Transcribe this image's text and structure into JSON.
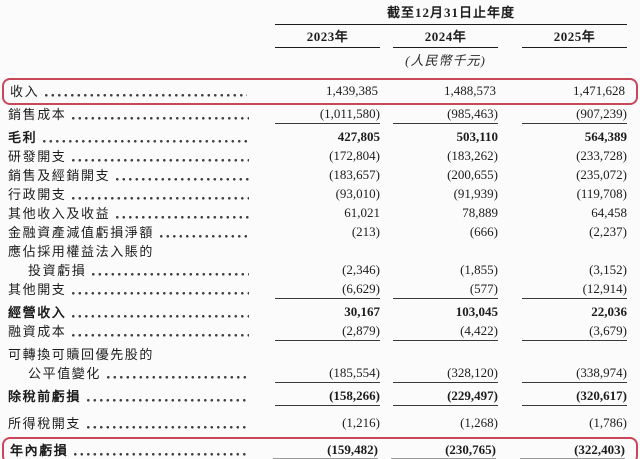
{
  "document": {
    "kind": "income-statement-table",
    "language": "zh-Hant"
  },
  "colors": {
    "highlight_border": "#c8485a",
    "text": "#1c1c1c",
    "rule": "#3a3a3a",
    "total_rule": "#9a9a9a",
    "background": "#fbfbfc"
  },
  "table": {
    "period_header": "截至12月31日止年度",
    "col_headers": [
      "2023年",
      "2024年",
      "2025年"
    ],
    "currency_note": "(人民幣千元)",
    "rows": [
      {
        "key": "revenue",
        "label": "收入",
        "values": [
          "1,439,385",
          "1,488,573",
          "1,471,628"
        ],
        "highlight": true
      },
      {
        "key": "cost-of-sales",
        "label": "銷售成本",
        "values": [
          "(1,011,580)",
          "(985,463)",
          "(907,239)"
        ],
        "rule": true
      },
      {
        "key": "gross-profit",
        "label": "毛利",
        "values": [
          "427,805",
          "503,110",
          "564,389"
        ],
        "bold": true,
        "gap": 1
      },
      {
        "key": "rd-expenses",
        "label": "研發開支",
        "values": [
          "(172,804)",
          "(183,262)",
          "(233,728)"
        ]
      },
      {
        "key": "selling-distribution-expenses",
        "label": "銷售及經銷開支",
        "values": [
          "(183,657)",
          "(200,655)",
          "(235,072)"
        ]
      },
      {
        "key": "admin-expenses",
        "label": "行政開支",
        "values": [
          "(93,010)",
          "(91,939)",
          "(119,708)"
        ]
      },
      {
        "key": "other-income-gains",
        "label": "其他收入及收益",
        "values": [
          "61,021",
          "78,889",
          "64,458"
        ]
      },
      {
        "key": "impairment-losses-financial-assets",
        "label": "金融資產減值虧損淨額",
        "values": [
          "(213)",
          "(666)",
          "(2,237)"
        ]
      },
      {
        "key": "share-of-losses-equity-method-line1",
        "label": "應佔採用權益法入賬的",
        "values": [
          "",
          "",
          ""
        ],
        "no_dots": true
      },
      {
        "key": "share-of-losses-equity-method-line2",
        "label": "投資虧損",
        "values": [
          "(2,346)",
          "(1,855)",
          "(3,152)"
        ],
        "indent": true
      },
      {
        "key": "other-expenses",
        "label": "其他開支",
        "values": [
          "(6,629)",
          "(577)",
          "(12,914)"
        ],
        "rule": true
      },
      {
        "key": "operating-income",
        "label": "經營收入",
        "values": [
          "30,167",
          "103,045",
          "22,036"
        ],
        "bold": true,
        "gap": 1
      },
      {
        "key": "finance-costs",
        "label": "融資成本",
        "values": [
          "(2,879)",
          "(4,422)",
          "(3,679)"
        ],
        "rule": true
      },
      {
        "key": "preferred-shares-fv-line1",
        "label": "可轉換可贖回優先股的",
        "values": [
          "",
          "",
          ""
        ],
        "no_dots": true,
        "gap": 1
      },
      {
        "key": "preferred-shares-fv-line2",
        "label": "公平值變化",
        "values": [
          "(185,554)",
          "(328,120)",
          "(338,974)"
        ],
        "indent": true,
        "rule": true
      },
      {
        "key": "loss-before-tax",
        "label": "除稅前虧損",
        "values": [
          "(158,266)",
          "(229,497)",
          "(320,617)"
        ],
        "bold": true,
        "rule": true,
        "gap": 1
      },
      {
        "key": "income-tax-expense",
        "label": "所得稅開支",
        "values": [
          "(1,216)",
          "(1,268)",
          "(1,786)"
        ],
        "gap": 2
      },
      {
        "key": "loss-for-the-year",
        "label": "年內虧損",
        "values": [
          "(159,482)",
          "(230,765)",
          "(322,403)"
        ],
        "bold": true,
        "highlight": true,
        "final": true,
        "gap": 1
      }
    ]
  }
}
